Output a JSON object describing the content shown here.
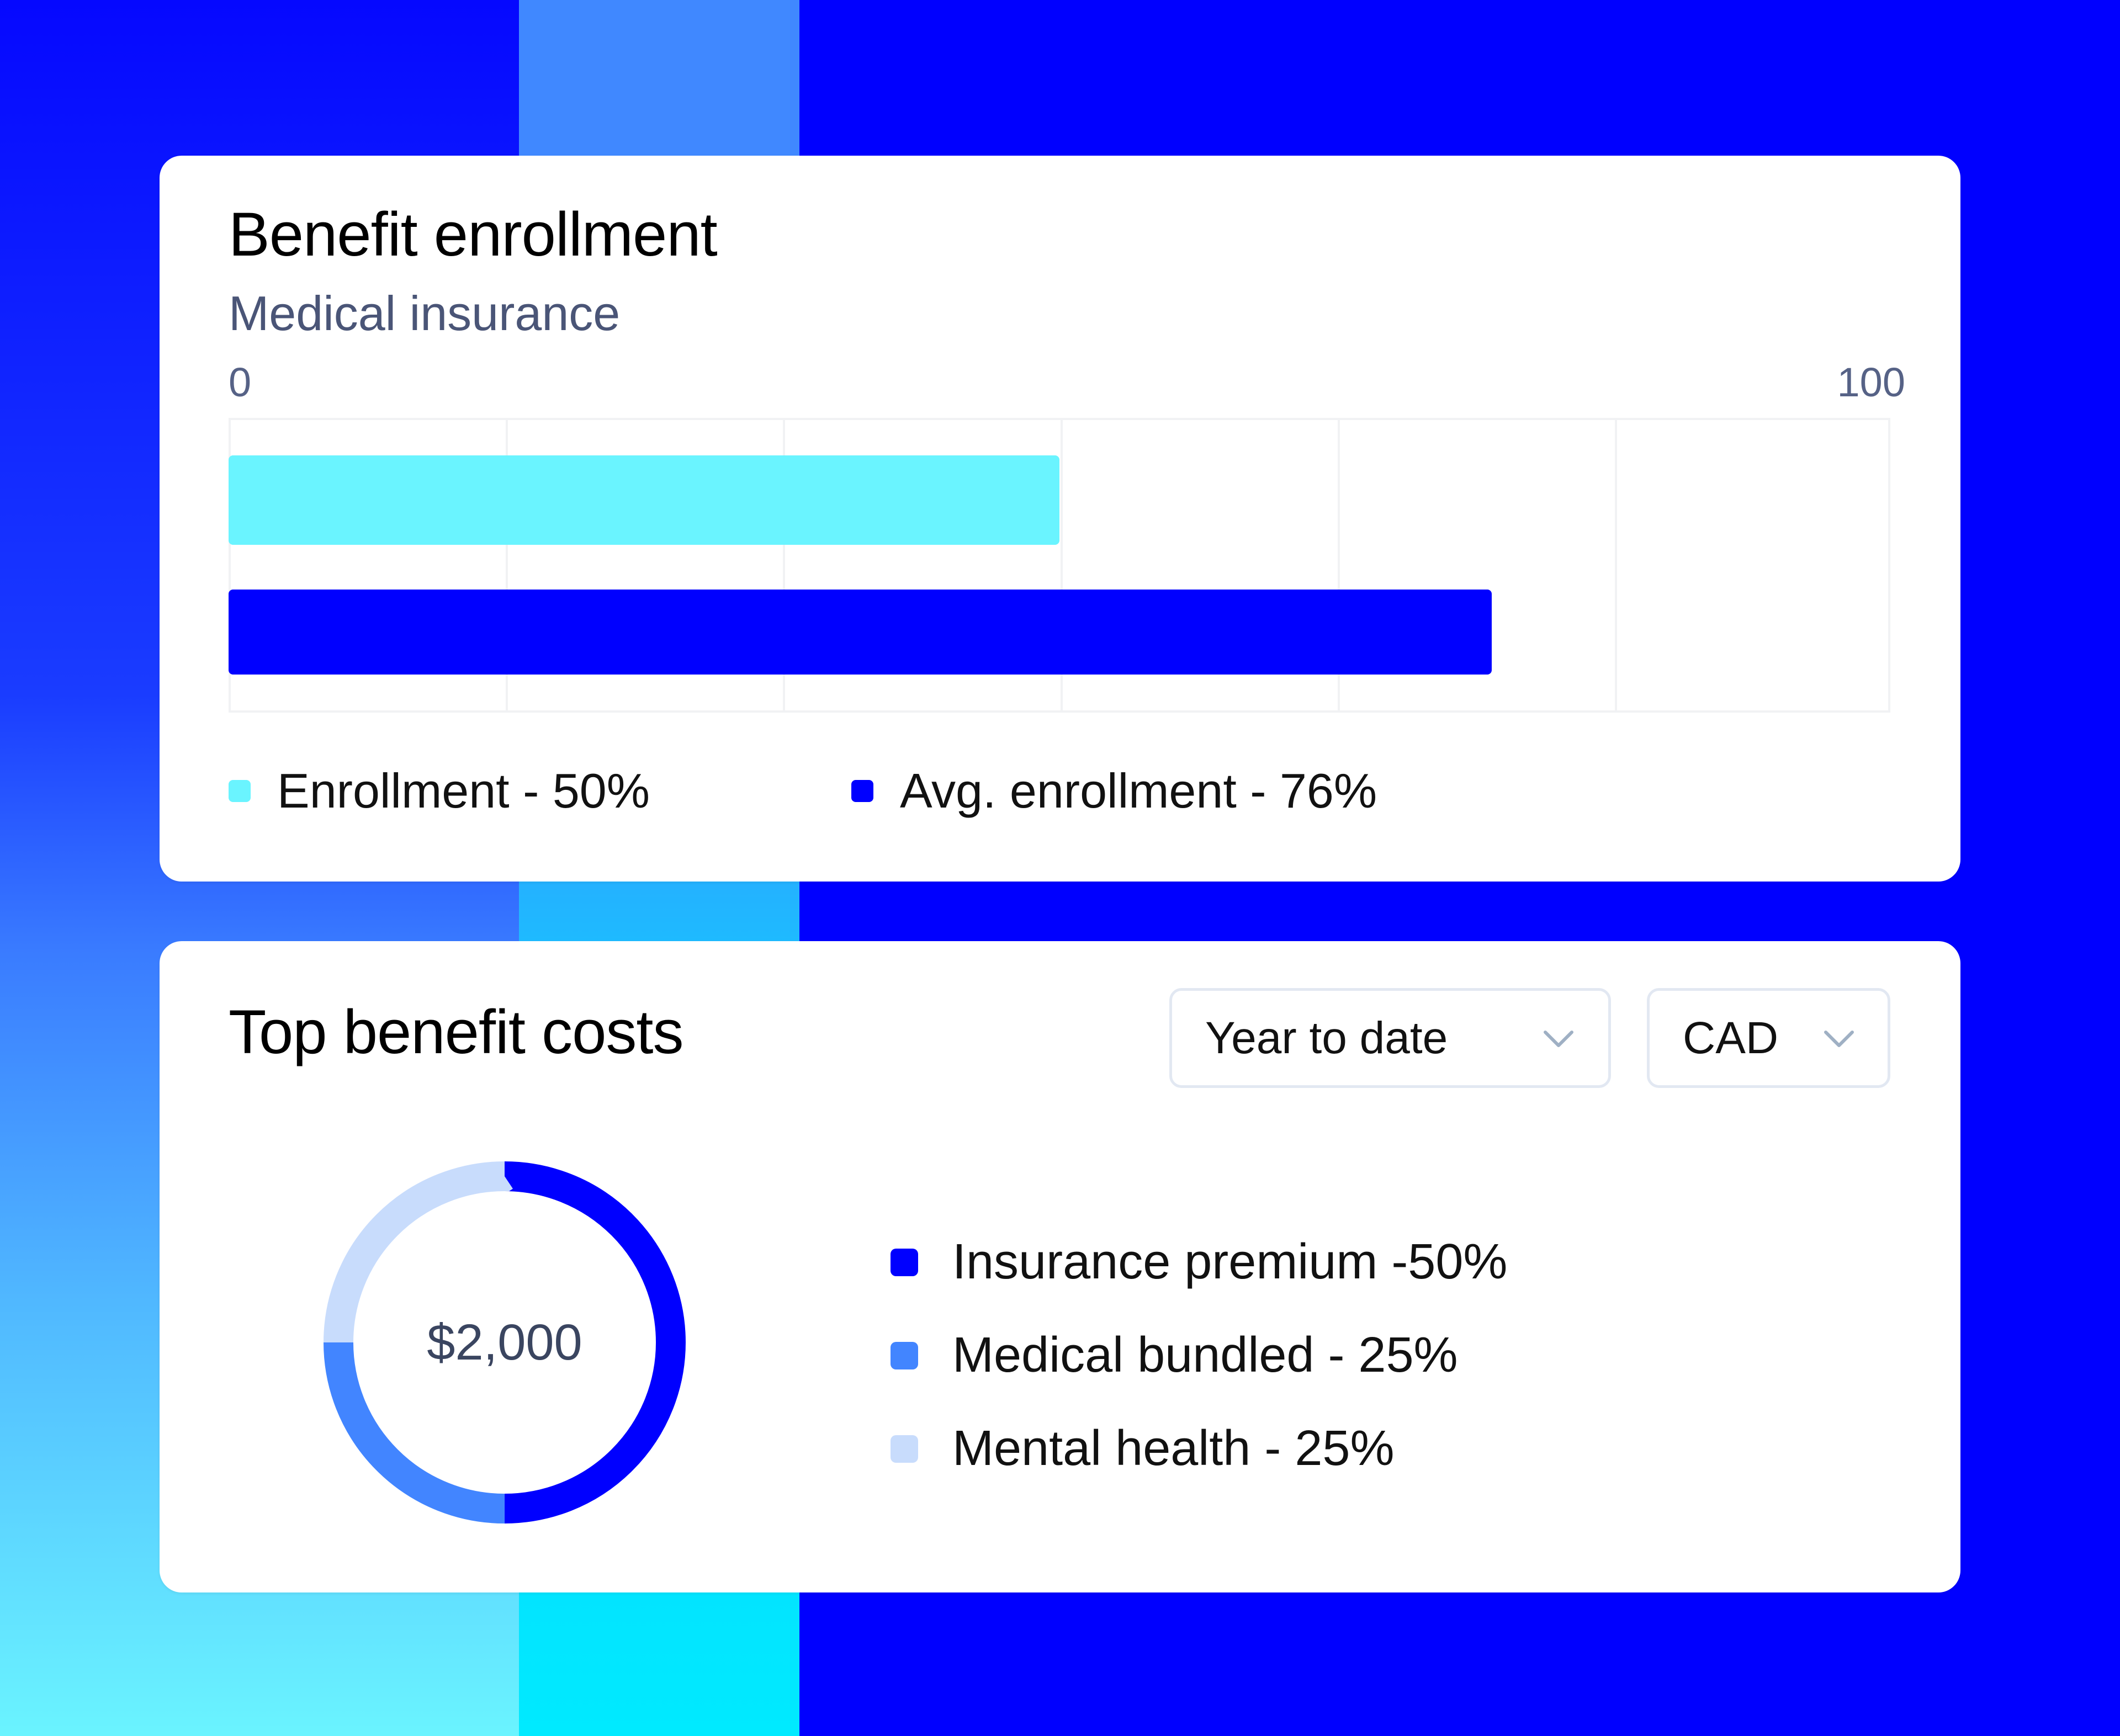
{
  "colors": {
    "brand_blue": "#0000ff",
    "enrollment_cyan": "#6af4ff",
    "medical_bundled_blue": "#4285ff",
    "mental_health_light": "#c8dcfc",
    "gridline": "#f1f2f4"
  },
  "enrollment_card": {
    "title": "Benefit enrollment",
    "subtitle": "Medical insurance",
    "axis_min_label": "0",
    "axis_max_label": "100",
    "legend": [
      {
        "label": "Enrollment - 50%",
        "color": "#6af4ff"
      },
      {
        "label": "Avg. enrollment - 76%",
        "color": "#0000ff"
      }
    ]
  },
  "costs_card": {
    "title": "Top benefit costs",
    "period_dropdown": {
      "selected": "Year to date",
      "icon": "chevron-down-icon"
    },
    "currency_dropdown": {
      "selected": "CAD",
      "icon": "chevron-down-icon"
    },
    "total_label": "$2,000",
    "legend": [
      {
        "label": "Insurance premium -50%",
        "color": "#0000ff"
      },
      {
        "label": "Medical bundled - 25%",
        "color": "#4285ff"
      },
      {
        "label": "Mental health - 25%",
        "color": "#c8dcfc"
      }
    ]
  },
  "chart_data": [
    {
      "type": "bar",
      "orientation": "horizontal",
      "title": "Benefit enrollment",
      "subtitle": "Medical insurance",
      "categories": [
        "Enrollment",
        "Avg. enrollment"
      ],
      "values": [
        50,
        76
      ],
      "colors": [
        "#6af4ff",
        "#0000ff"
      ],
      "xlim": [
        0,
        100
      ],
      "tick_labels": [
        "0",
        "100"
      ],
      "grid": true,
      "grid_divisions": 6,
      "legend": [
        "Enrollment - 50%",
        "Avg. enrollment - 76%"
      ],
      "legend_position": "bottom"
    },
    {
      "type": "pie",
      "variant": "donut",
      "title": "Top benefit costs",
      "center_label": "$2,000",
      "categories": [
        "Insurance premium",
        "Medical bundled",
        "Mental health"
      ],
      "values": [
        50,
        25,
        25
      ],
      "colors": [
        "#0000ff",
        "#4285ff",
        "#c8dcfc"
      ],
      "legend": [
        "Insurance premium -50%",
        "Medical bundled - 25%",
        "Mental health - 25%"
      ],
      "legend_position": "right",
      "filters": {
        "period": "Year to date",
        "currency": "CAD"
      }
    }
  ]
}
